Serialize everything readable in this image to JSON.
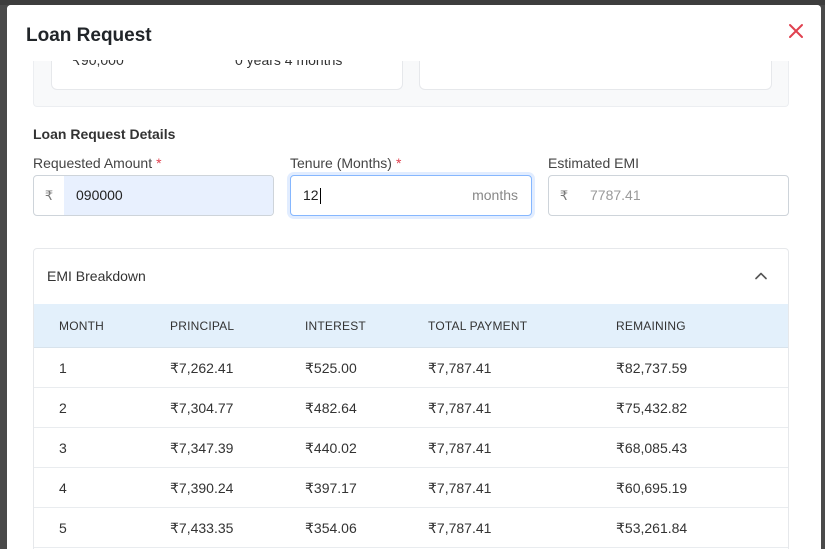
{
  "modal": {
    "title": "Loan Request"
  },
  "top_card": {
    "left_value": "₹90,000",
    "left_value_2": "0 years 4 months"
  },
  "section": {
    "title": "Loan Request Details"
  },
  "fields": {
    "amount": {
      "label": "Requested Amount",
      "required": "*",
      "prefix": "₹",
      "value": "090000"
    },
    "tenure": {
      "label": "Tenure (Months)",
      "required": "*",
      "value": "12",
      "suffix": "months"
    },
    "emi": {
      "label": "Estimated EMI",
      "prefix": "₹",
      "value": "7787.41"
    }
  },
  "breakdown": {
    "title": "EMI Breakdown",
    "columns": [
      "MONTH",
      "PRINCIPAL",
      "INTEREST",
      "TOTAL PAYMENT",
      "REMAINING"
    ],
    "rows": [
      [
        "1",
        "₹7,262.41",
        "₹525.00",
        "₹7,787.41",
        "₹82,737.59"
      ],
      [
        "2",
        "₹7,304.77",
        "₹482.64",
        "₹7,787.41",
        "₹75,432.82"
      ],
      [
        "3",
        "₹7,347.39",
        "₹440.02",
        "₹7,787.41",
        "₹68,085.43"
      ],
      [
        "4",
        "₹7,390.24",
        "₹397.17",
        "₹7,787.41",
        "₹60,695.19"
      ],
      [
        "5",
        "₹7,433.35",
        "₹354.06",
        "₹7,787.41",
        "₹53,261.84"
      ]
    ]
  },
  "colors": {
    "close_icon": "#e0414f",
    "required_marker": "#e0414f",
    "table_header_bg": "#e3f0fb",
    "autofill_bg": "#e8f0fe",
    "focus_border": "#86b7fe"
  },
  "icons": {
    "close": "close-icon",
    "collapse": "chevron-up-icon"
  }
}
